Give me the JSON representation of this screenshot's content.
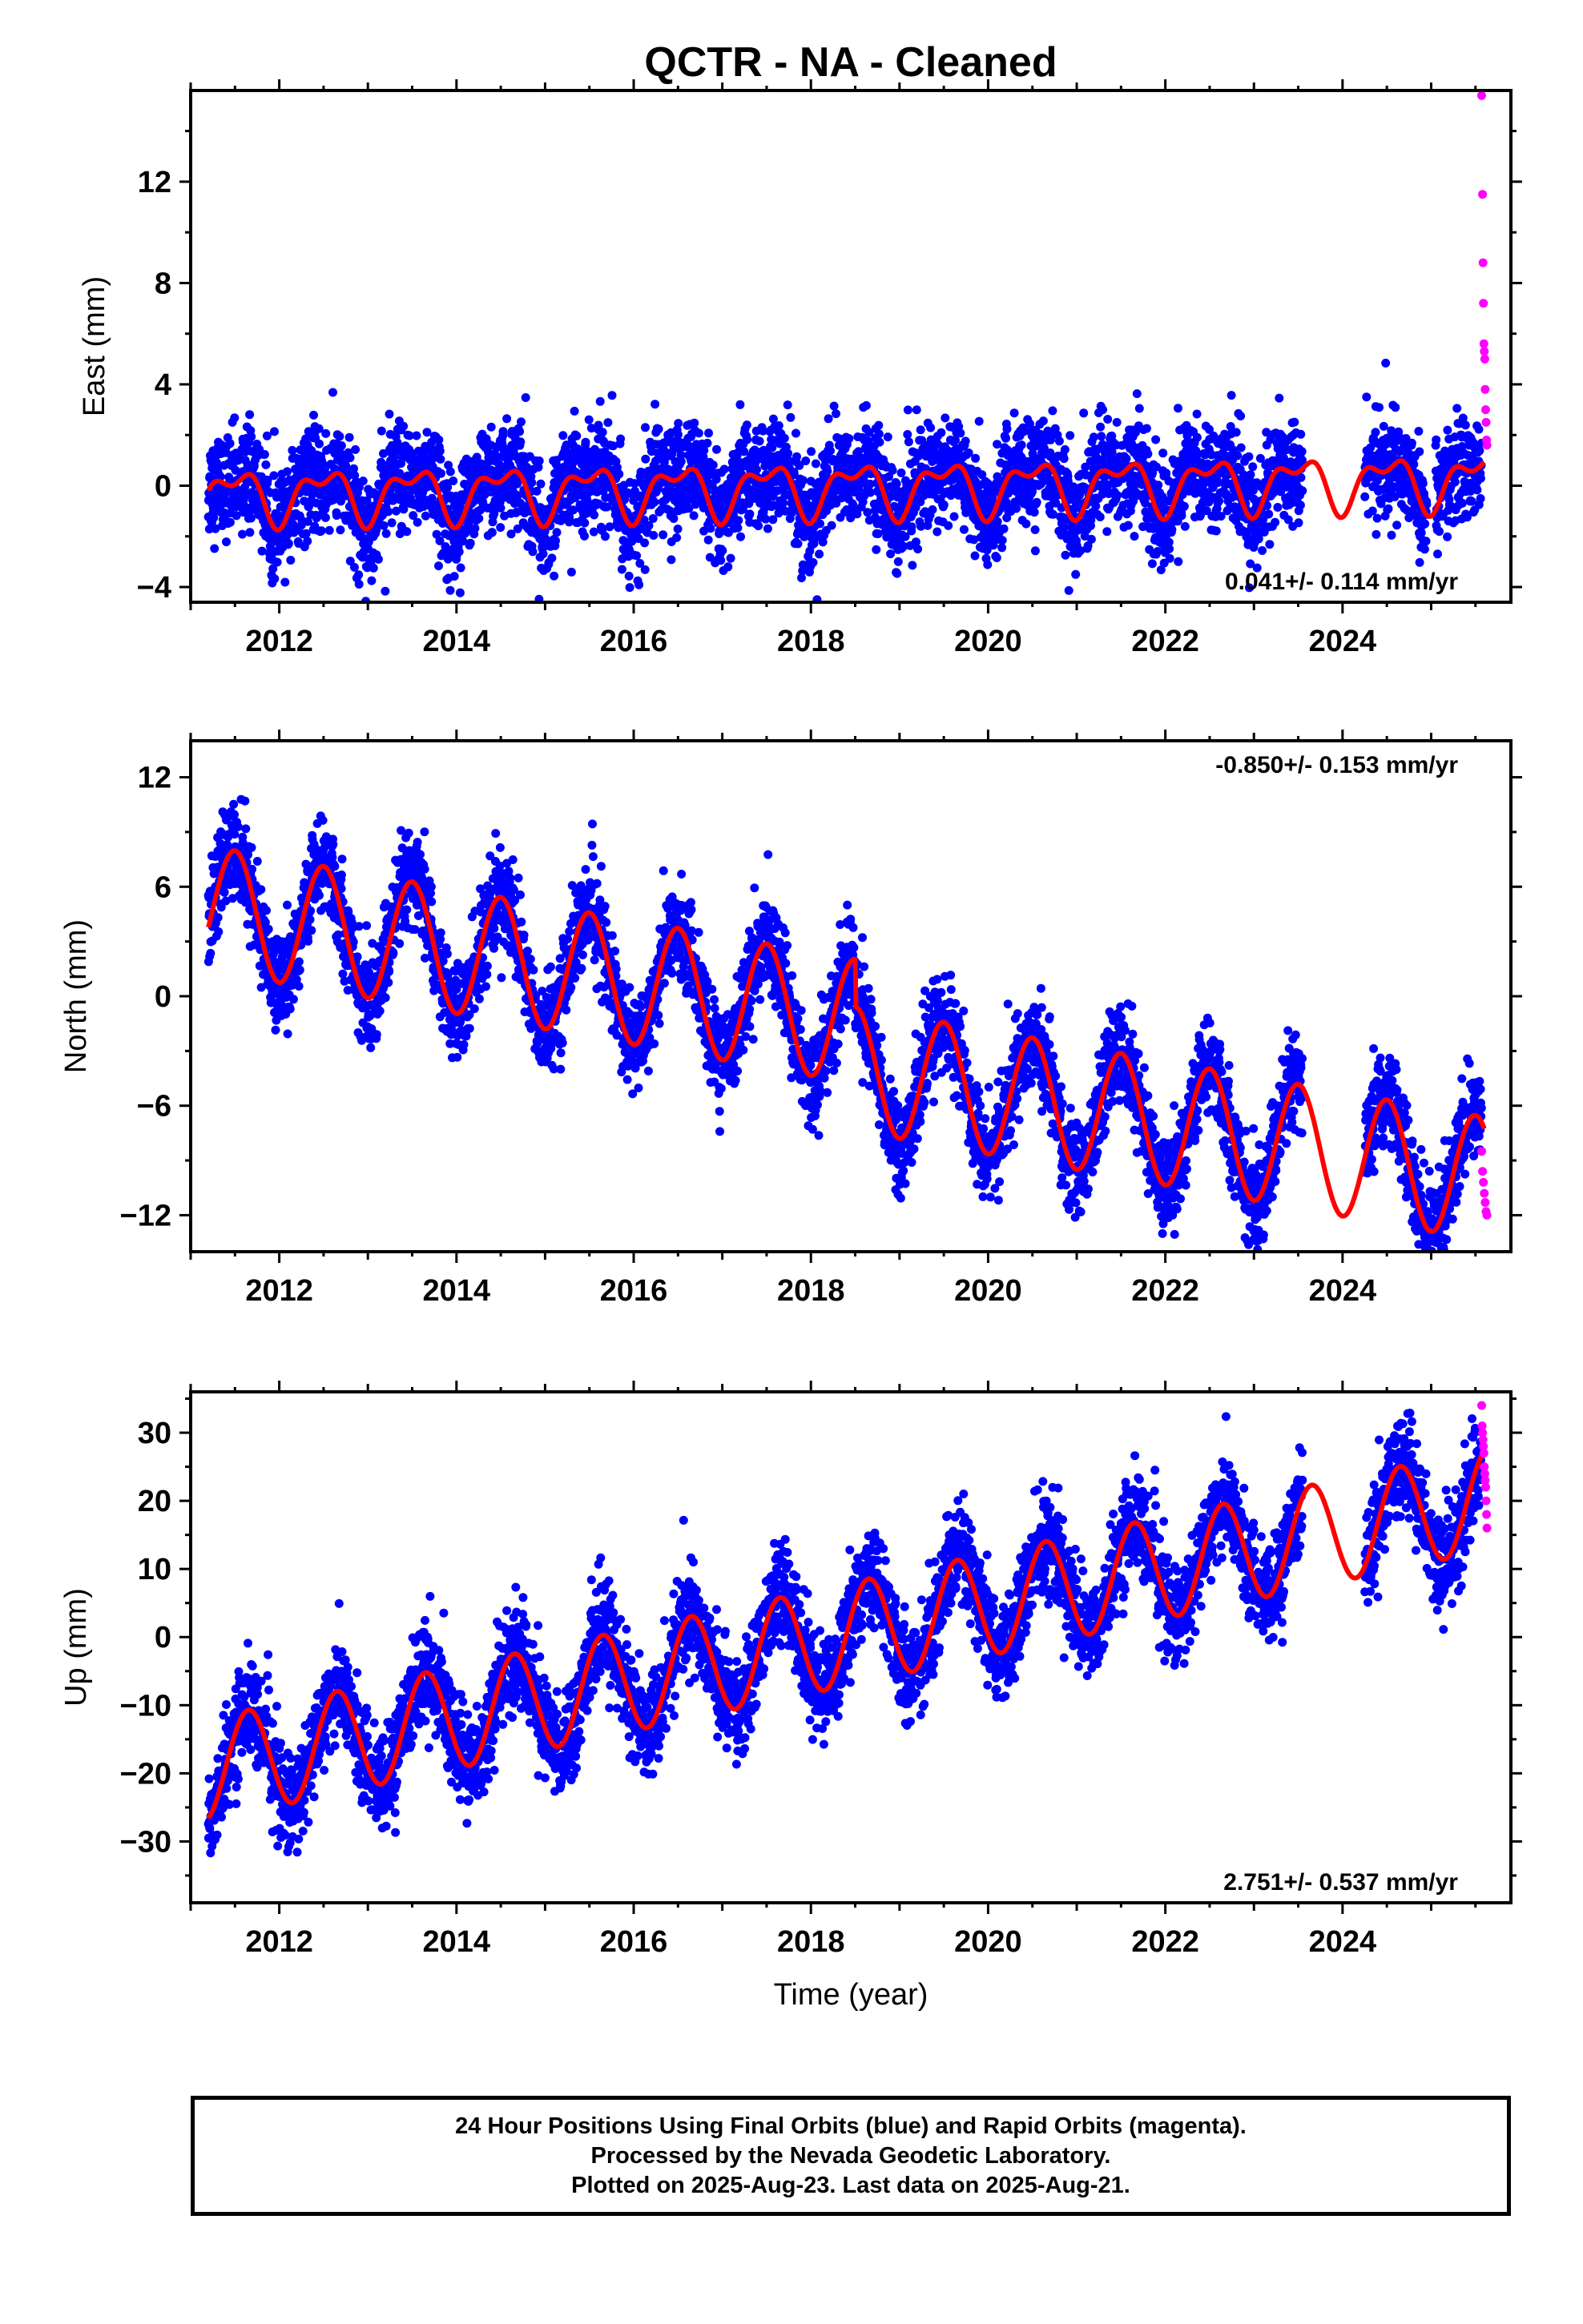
{
  "title": "QCTR  - NA - Cleaned",
  "x_axis_label": "Time (year)",
  "footer": {
    "line1": "24 Hour Positions Using Final Orbits (blue) and Rapid Orbits (magenta).",
    "line2": "Processed by the Nevada Geodetic Laboratory.",
    "line3": "Plotted on 2025-Aug-23. Last data on 2025-Aug-21."
  },
  "colors": {
    "final_orbits": "#0000ff",
    "rapid_orbits": "#ff00ff",
    "model": "#ff0000"
  },
  "chart_data": [
    {
      "type": "scatter",
      "component": "east",
      "ylabel": "East (mm)",
      "xlim": [
        2011.0,
        2025.9
      ],
      "ylim": [
        -4.6,
        15.6
      ],
      "xticks": [
        2012,
        2014,
        2016,
        2018,
        2020,
        2022,
        2024
      ],
      "yticks": [
        -4,
        0,
        4,
        8,
        12
      ],
      "rate_label": "0.041+/- 0.114 mm/yr",
      "rate_position": "bottom-right",
      "data_range": [
        2011.2,
        2025.6
      ],
      "series": [
        {
          "name": "Final Orbits",
          "style": "blue dots, ~1 mm scatter around model"
        },
        {
          "name": "Rapid Orbits",
          "x": [
            2025.57,
            2025.58,
            2025.585,
            2025.59,
            2025.595,
            2025.6,
            2025.605,
            2025.61,
            2025.615,
            2025.62,
            2025.625,
            2025.63
          ],
          "y": [
            15.4,
            11.5,
            8.8,
            7.2,
            5.6,
            5.3,
            5.0,
            3.8,
            3.0,
            2.5,
            1.8,
            1.6
          ]
        },
        {
          "name": "Model",
          "params": {
            "intercept_at_2011": -0.4,
            "rate_mm_yr": 0.041,
            "annual_amp": 0.9,
            "annual_phase_yr": 0.25,
            "semiannual_amp": 0.5,
            "semiannual_phase_yr": 0.1
          }
        }
      ]
    },
    {
      "type": "scatter",
      "component": "north",
      "ylabel": "North (mm)",
      "xlim": [
        2011.0,
        2025.9
      ],
      "ylim": [
        -14.0,
        14.0
      ],
      "xticks": [
        2012,
        2014,
        2016,
        2018,
        2020,
        2022,
        2024
      ],
      "yticks": [
        -12,
        -6,
        0,
        6,
        12
      ],
      "rate_label": "-0.850+/- 0.153 mm/yr",
      "rate_position": "top-right",
      "data_range": [
        2011.2,
        2025.6
      ],
      "series": [
        {
          "name": "Final Orbits",
          "style": "blue dots, ~1.3 mm scatter around model"
        },
        {
          "name": "Rapid Orbits",
          "x": [
            2025.57,
            2025.58,
            2025.59,
            2025.6,
            2025.61,
            2025.62,
            2025.63
          ],
          "y": [
            -8.5,
            -9.6,
            -10.2,
            -10.8,
            -11.3,
            -11.8,
            -12.0
          ]
        },
        {
          "name": "Model",
          "params": {
            "intercept_at_2011": 5.0,
            "rate_mm_yr": -0.85,
            "annual_amp": 3.4,
            "annual_phase_yr": 0.25,
            "offset_at": 2018.5,
            "offset_mm": -2.6
          }
        }
      ]
    },
    {
      "type": "scatter",
      "component": "up",
      "ylabel": "Up (mm)",
      "xlim": [
        2011.0,
        2025.9
      ],
      "ylim": [
        -39.0,
        36.0
      ],
      "xticks": [
        2012,
        2014,
        2016,
        2018,
        2020,
        2022,
        2024
      ],
      "yticks": [
        -30,
        -20,
        -10,
        0,
        10,
        20,
        30
      ],
      "rate_label": "2.751+/- 0.537 mm/yr",
      "rate_position": "bottom-right",
      "data_range": [
        2011.2,
        2025.6
      ],
      "series": [
        {
          "name": "Final Orbits",
          "style": "blue dots, ~3.5 mm scatter around model"
        },
        {
          "name": "Rapid Orbits",
          "x": [
            2025.57,
            2025.575,
            2025.58,
            2025.585,
            2025.59,
            2025.595,
            2025.6,
            2025.605,
            2025.61,
            2025.615,
            2025.62,
            2025.625,
            2025.63
          ],
          "y": [
            34,
            31,
            30,
            29,
            28,
            27,
            25,
            24,
            23,
            22,
            20,
            18,
            16
          ]
        },
        {
          "name": "Model",
          "params": {
            "intercept_at_2011": -20.0,
            "rate_mm_yr": 2.751,
            "annual_amp": 7.5,
            "annual_phase_yr": 0.4
          }
        }
      ]
    }
  ]
}
